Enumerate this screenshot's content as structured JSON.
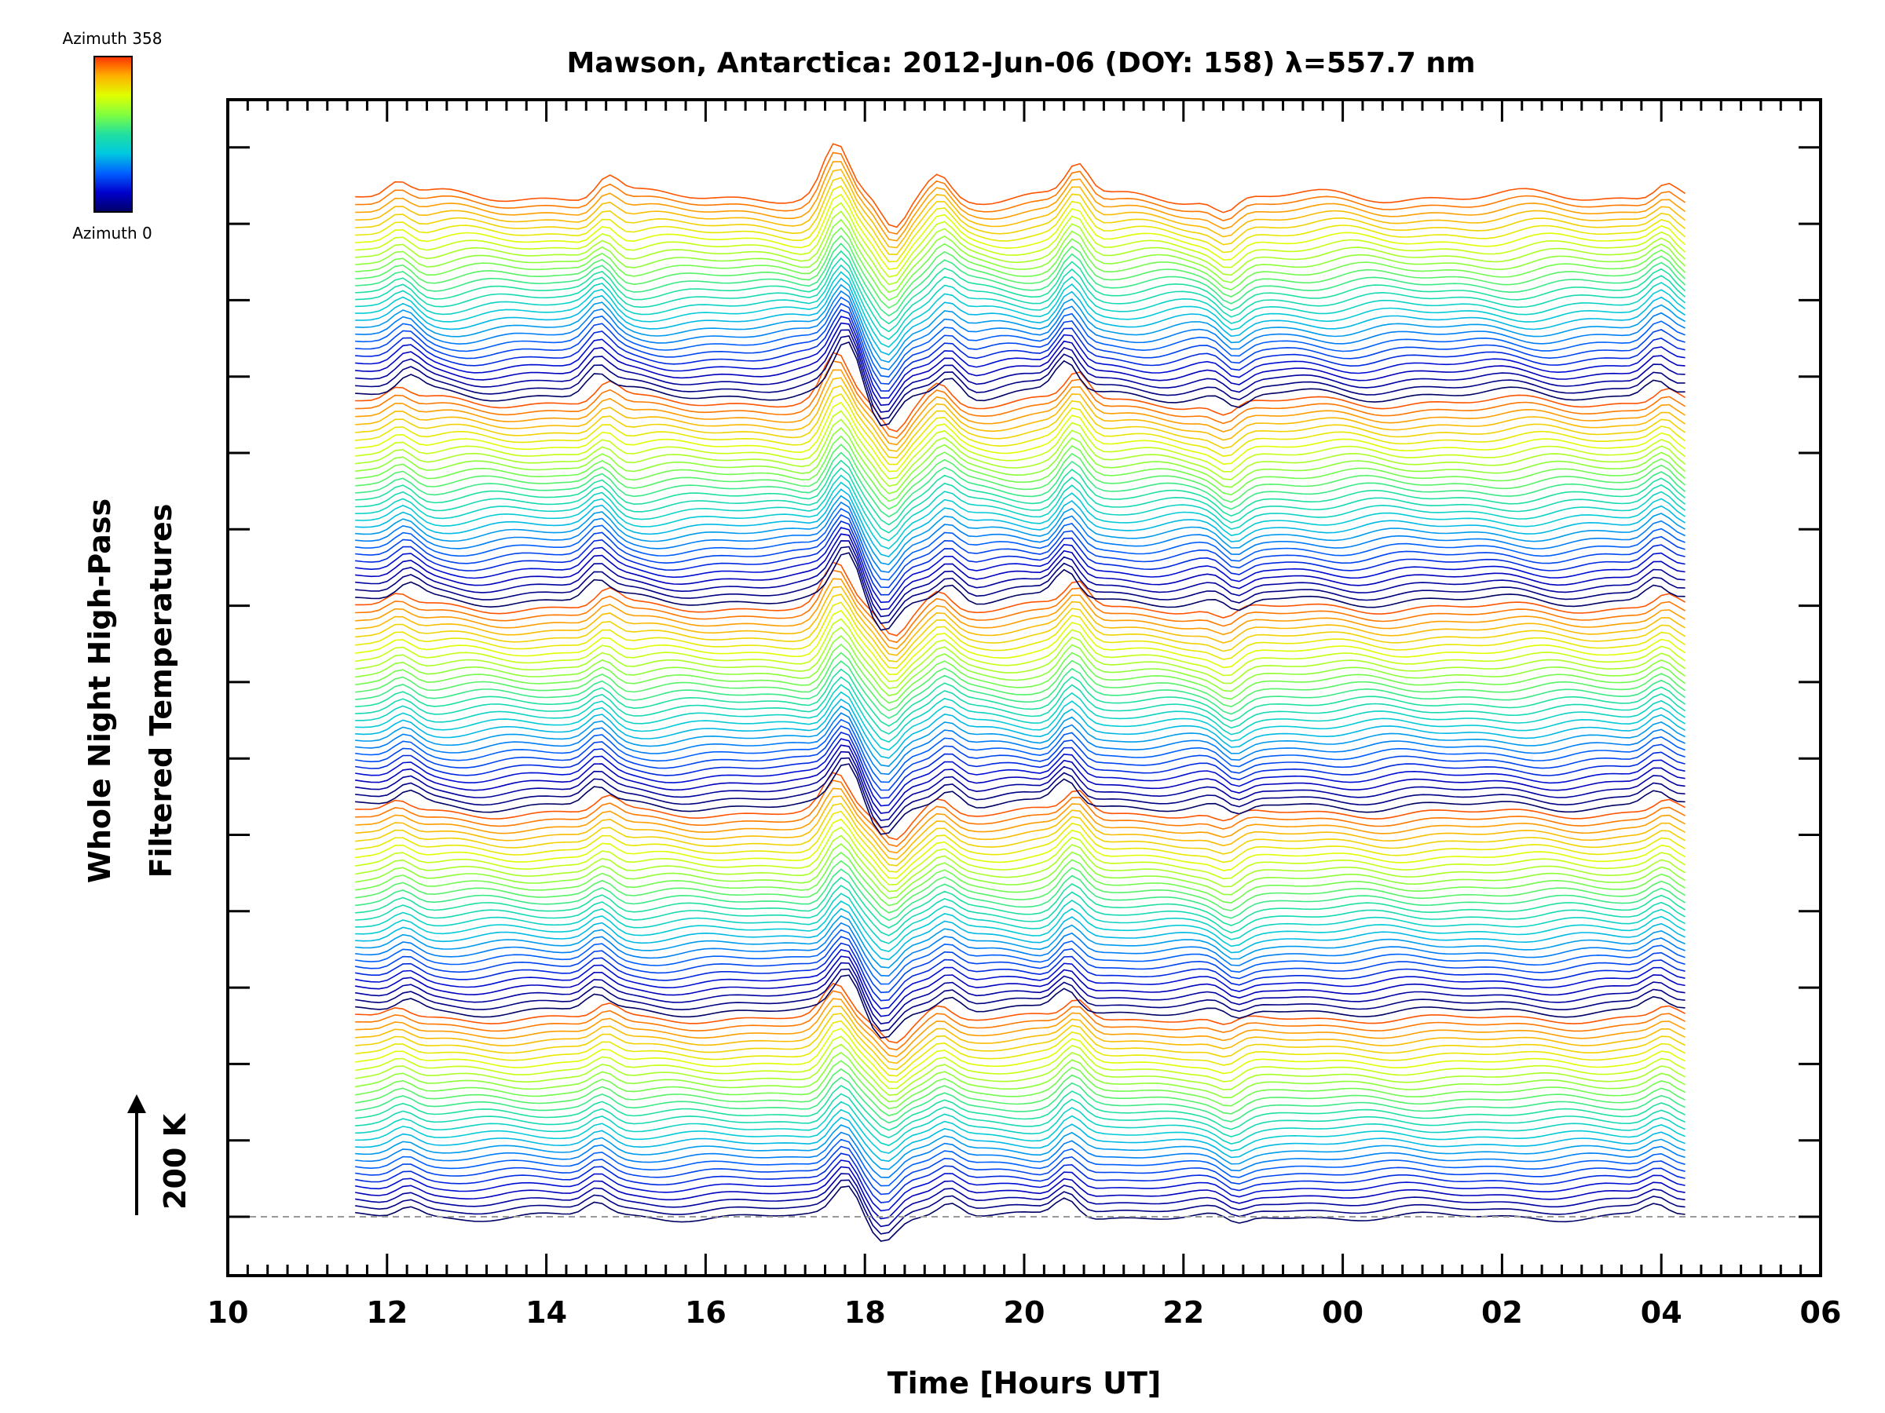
{
  "chart_data": {
    "type": "line",
    "title": "Mawson, Antarctica: 2012-Jun-06 (DOY: 158) λ=557.7 nm",
    "xlabel": "Time [Hours UT]",
    "ylabel_line1": "Whole Night High-Pass",
    "ylabel_line2": "Filtered Temperatures",
    "scale_bar_label": "200 K",
    "x_range_hours": [
      10,
      30
    ],
    "x_ticks": [
      {
        "hour": 10,
        "label": "10"
      },
      {
        "hour": 12,
        "label": "12"
      },
      {
        "hour": 14,
        "label": "14"
      },
      {
        "hour": 16,
        "label": "16"
      },
      {
        "hour": 18,
        "label": "18"
      },
      {
        "hour": 20,
        "label": "20"
      },
      {
        "hour": 22,
        "label": "22"
      },
      {
        "hour": 24,
        "label": "00"
      },
      {
        "hour": 26,
        "label": "02"
      },
      {
        "hour": 28,
        "label": "04"
      },
      {
        "hour": 30,
        "label": "06"
      }
    ],
    "data_time_range_hours": [
      11.6,
      28.3
    ],
    "series_count": 140,
    "series_color_by": "azimuth",
    "colorbar": {
      "top_label": "Azimuth 358",
      "bottom_label": "Azimuth 0",
      "colors": [
        "#000066",
        "#0000cc",
        "#0060ff",
        "#00c8e0",
        "#20e0a0",
        "#80ff40",
        "#e0ff00",
        "#ffb000",
        "#ff3000"
      ]
    },
    "features": [
      {
        "hour": 12.2,
        "amplitude": 0.6
      },
      {
        "hour": 14.7,
        "amplitude": 0.8
      },
      {
        "hour": 17.7,
        "amplitude": 1.8
      },
      {
        "hour": 18.3,
        "amplitude": -1.2
      },
      {
        "hour": 19.0,
        "amplitude": 0.8
      },
      {
        "hour": 20.6,
        "amplitude": 1.2
      },
      {
        "hour": 22.6,
        "amplitude": -0.6
      },
      {
        "hour": 28.0,
        "amplitude": 0.7
      }
    ]
  }
}
